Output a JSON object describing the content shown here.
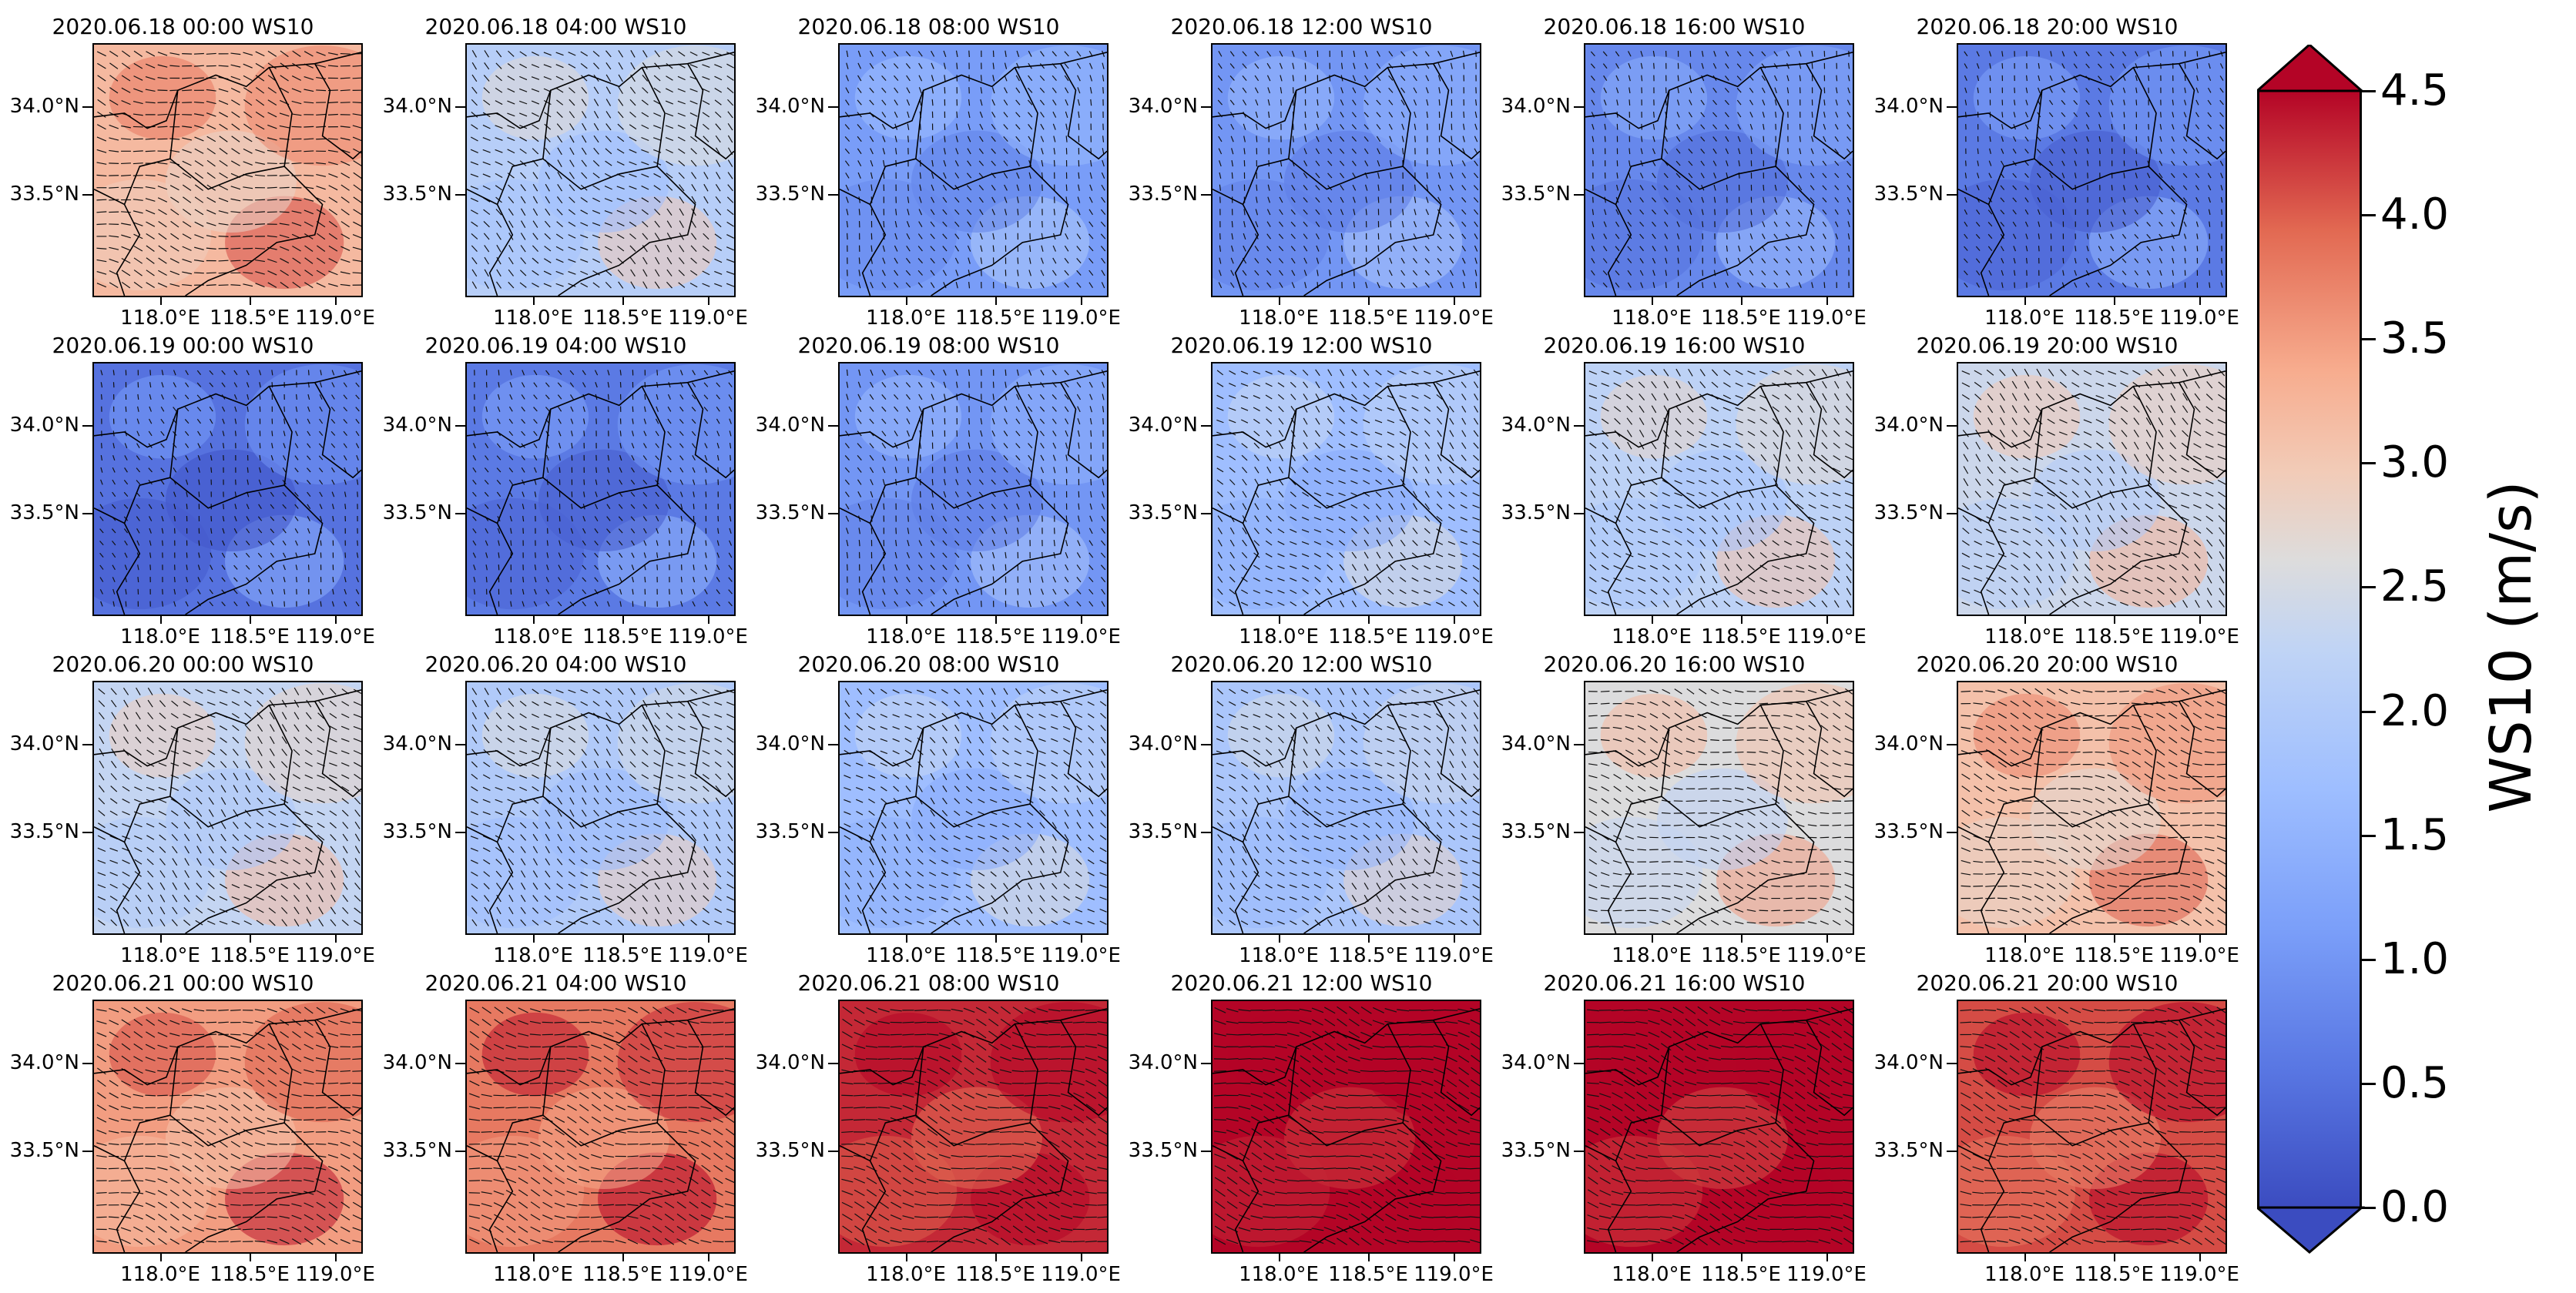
{
  "panels": [
    {
      "title": "2020.06.18 00:00 WS10",
      "mean_ws": 3.2
    },
    {
      "title": "2020.06.18 04:00 WS10",
      "mean_ws": 2.1
    },
    {
      "title": "2020.06.18 08:00 WS10",
      "mean_ws": 1.1
    },
    {
      "title": "2020.06.18 12:00 WS10",
      "mean_ws": 1.0
    },
    {
      "title": "2020.06.18 16:00 WS10",
      "mean_ws": 0.8
    },
    {
      "title": "2020.06.18 20:00 WS10",
      "mean_ws": 0.6
    },
    {
      "title": "2020.06.19 00:00 WS10",
      "mean_ws": 0.5
    },
    {
      "title": "2020.06.19 04:00 WS10",
      "mean_ws": 0.6
    },
    {
      "title": "2020.06.19 08:00 WS10",
      "mean_ws": 1.0
    },
    {
      "title": "2020.06.19 12:00 WS10",
      "mean_ws": 1.7
    },
    {
      "title": "2020.06.19 16:00 WS10",
      "mean_ws": 2.2
    },
    {
      "title": "2020.06.19 20:00 WS10",
      "mean_ws": 2.4
    },
    {
      "title": "2020.06.20 00:00 WS10",
      "mean_ws": 2.3
    },
    {
      "title": "2020.06.20 04:00 WS10",
      "mean_ws": 2.0
    },
    {
      "title": "2020.06.20 08:00 WS10",
      "mean_ws": 1.7
    },
    {
      "title": "2020.06.20 12:00 WS10",
      "mean_ws": 1.9
    },
    {
      "title": "2020.06.20 16:00 WS10",
      "mean_ws": 2.6
    },
    {
      "title": "2020.06.20 20:00 WS10",
      "mean_ws": 3.1
    },
    {
      "title": "2020.06.21 00:00 WS10",
      "mean_ws": 3.5
    },
    {
      "title": "2020.06.21 04:00 WS10",
      "mean_ws": 3.8
    },
    {
      "title": "2020.06.21 08:00 WS10",
      "mean_ws": 4.3
    },
    {
      "title": "2020.06.21 12:00 WS10",
      "mean_ws": 4.6
    },
    {
      "title": "2020.06.21 16:00 WS10",
      "mean_ws": 4.5
    },
    {
      "title": "2020.06.21 20:00 WS10",
      "mean_ws": 4.1
    }
  ],
  "axes": {
    "y_ticks": [
      "34.0°N",
      "33.5°N"
    ],
    "x_ticks": [
      "118.0°E",
      "118.5°E",
      "119.0°E"
    ]
  },
  "colorbar": {
    "title": "WS10 (m/s)",
    "ticks": [
      "0.0",
      "0.5",
      "1.0",
      "1.5",
      "2.0",
      "2.5",
      "3.0",
      "3.5",
      "4.0",
      "4.5"
    ],
    "range": [
      0.0,
      4.5
    ],
    "colormap": "coolwarm",
    "low_color": "#3b4cc0",
    "mid_color": "#dddddd",
    "high_color": "#b40426"
  }
}
